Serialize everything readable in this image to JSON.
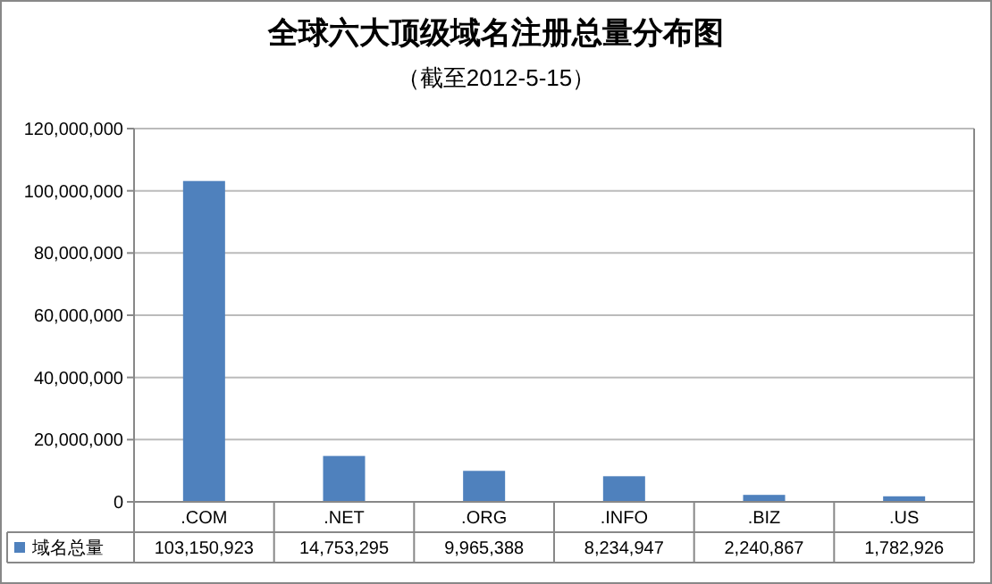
{
  "chart_data": {
    "type": "bar",
    "title": "全球六大顶级域名注册总量分布图",
    "subtitle": "（截至2012-5-15）",
    "categories": [
      ".COM",
      ".NET",
      ".ORG",
      ".INFO",
      ".BIZ",
      ".US"
    ],
    "series": [
      {
        "name": "域名总量",
        "color": "#4f81bd",
        "values": [
          103150923,
          14753295,
          9965388,
          8234947,
          2240867,
          1782926
        ],
        "value_labels": [
          "103,150,923",
          "14,753,295",
          "9,965,388",
          "8,234,947",
          "2,240,867",
          "1,782,926"
        ]
      }
    ],
    "ylim": [
      0,
      120000000
    ],
    "yticks": [
      {
        "value": 0,
        "label": "0"
      },
      {
        "value": 20000000,
        "label": "20,000,000"
      },
      {
        "value": 40000000,
        "label": "40,000,000"
      },
      {
        "value": 60000000,
        "label": "60,000,000"
      },
      {
        "value": 80000000,
        "label": "80,000,000"
      },
      {
        "value": 100000000,
        "label": "100,000,000"
      },
      {
        "value": 120000000,
        "label": "120,000,000"
      }
    ],
    "grid": "y",
    "legend": "bottom"
  }
}
